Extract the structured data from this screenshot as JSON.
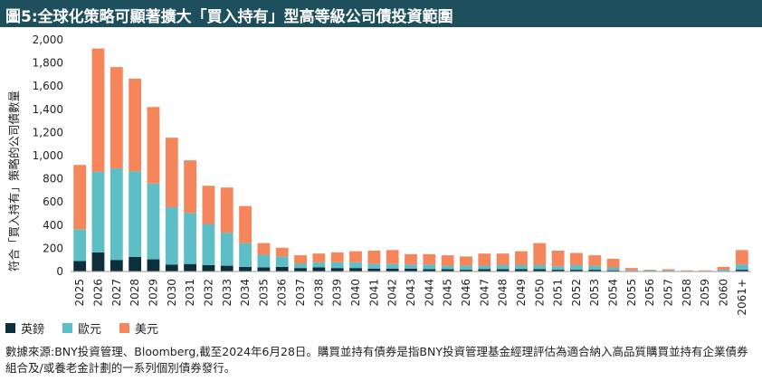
{
  "title": "圖5:全球化策略可顯著擴大「買入持有」型高等級公司債投資範圍",
  "footnote": "數據來源:BNY投資管理、Bloomberg,截至2024年6月28日。購買並持有債券是指BNY投資管理基金經理評估為適合納入高品質購買並持有企業債券組合及/或養老金計劃的一系列個別債券發行。",
  "chart_data": {
    "type": "bar",
    "stacked": true,
    "title": "",
    "xlabel": "",
    "ylabel": "符合「買入持有」策略的公司債數量",
    "ylim": [
      0,
      2000
    ],
    "yticks": [
      0,
      200,
      400,
      600,
      800,
      1000,
      1200,
      1400,
      1600,
      1800,
      2000
    ],
    "ytick_labels": [
      "0",
      "200",
      "400",
      "600",
      "800",
      "1,000",
      "1,200",
      "1,400",
      "1,600",
      "1,800",
      "2,000"
    ],
    "grid": false,
    "legend_position": "bottom-left",
    "categories": [
      "2025",
      "2026",
      "2027",
      "2028",
      "2029",
      "2030",
      "2031",
      "2032",
      "2033",
      "2034",
      "2035",
      "2036",
      "2037",
      "2038",
      "2039",
      "2040",
      "2041",
      "2042",
      "2043",
      "2044",
      "2045",
      "2046",
      "2047",
      "2048",
      "2049",
      "2050",
      "2051",
      "2052",
      "2053",
      "2054",
      "2055",
      "2056",
      "2057",
      "2058",
      "2059",
      "2060",
      "2061+"
    ],
    "series": [
      {
        "name": "英鎊",
        "color": "#0f2e3c",
        "values": [
          90,
          165,
          100,
          125,
          105,
          60,
          65,
          55,
          50,
          40,
          35,
          40,
          30,
          35,
          30,
          30,
          25,
          25,
          25,
          20,
          20,
          15,
          20,
          20,
          20,
          20,
          15,
          15,
          15,
          10,
          5,
          5,
          5,
          3,
          3,
          5,
          15
        ]
      },
      {
        "name": "歐元",
        "color": "#5dbec6",
        "values": [
          275,
          695,
          790,
          740,
          655,
          495,
          440,
          355,
          285,
          205,
          110,
          90,
          40,
          45,
          50,
          50,
          40,
          40,
          35,
          40,
          30,
          35,
          30,
          35,
          35,
          35,
          30,
          40,
          35,
          25,
          5,
          5,
          5,
          3,
          3,
          10,
          45
        ]
      },
      {
        "name": "美元",
        "color": "#f5865c",
        "values": [
          555,
          1065,
          875,
          800,
          660,
          600,
          455,
          330,
          390,
          320,
          100,
          75,
          70,
          75,
          85,
          95,
          115,
          120,
          90,
          90,
          90,
          80,
          105,
          100,
          120,
          190,
          135,
          105,
          90,
          75,
          20,
          5,
          10,
          4,
          4,
          25,
          125
        ]
      }
    ]
  }
}
